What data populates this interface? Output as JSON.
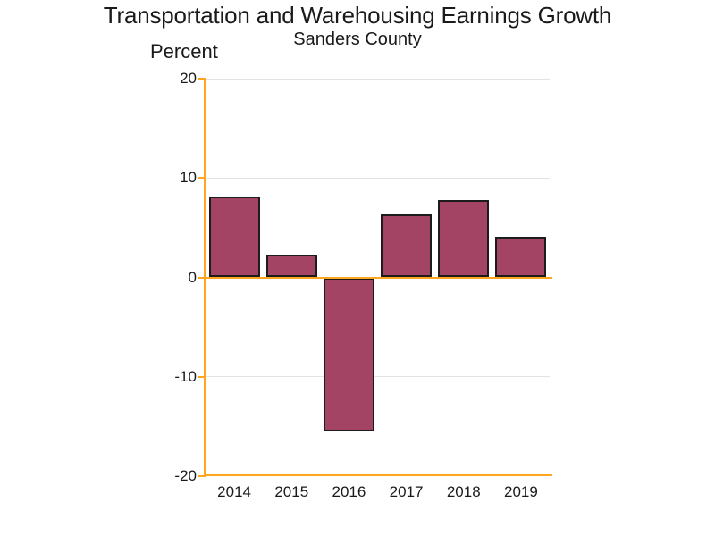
{
  "chart_data": {
    "type": "bar",
    "title": "Transportation and Warehousing Earnings Growth",
    "subtitle": "Sanders County",
    "ylabel": "Percent",
    "xlabel": "",
    "categories": [
      "2014",
      "2015",
      "2016",
      "2017",
      "2018",
      "2019"
    ],
    "values": [
      8.1,
      2.3,
      -15.5,
      6.3,
      7.8,
      4.1
    ],
    "ylim": [
      -20,
      20
    ],
    "yticks": [
      20,
      10,
      0,
      -10,
      -20
    ],
    "grid": true,
    "legend": "none",
    "colors": {
      "bar_fill": "#A34465",
      "bar_border": "#1C1C1C",
      "axis": "#FFA51F",
      "gridline": "#E2E2E2",
      "text": "#1A1A1A",
      "background": "#FFFFFF"
    }
  }
}
